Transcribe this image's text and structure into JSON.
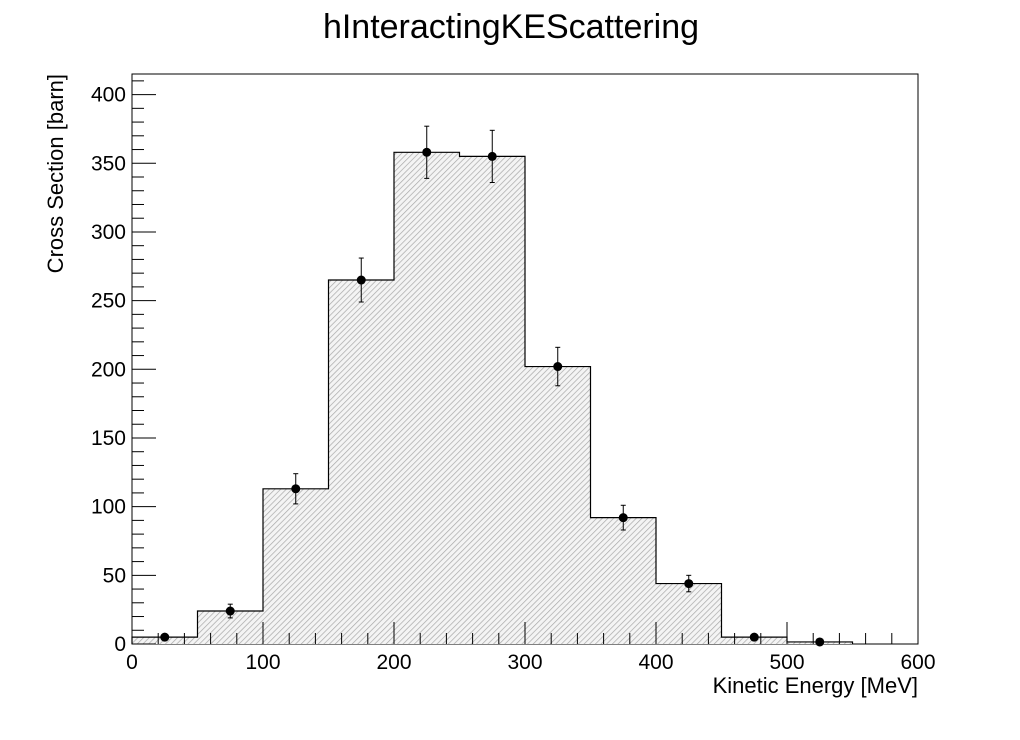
{
  "chart_data": {
    "type": "bar",
    "title": "hInteractingKEScattering",
    "xlabel": "Kinetic Energy [MeV]",
    "ylabel": "Cross Section [barn]",
    "xlim": [
      0,
      600
    ],
    "ylim": [
      0,
      415
    ],
    "x_ticks": [
      0,
      100,
      200,
      300,
      400,
      500,
      600
    ],
    "y_ticks": [
      0,
      50,
      100,
      150,
      200,
      250,
      300,
      350,
      400
    ],
    "bin_edges": [
      0,
      50,
      100,
      150,
      200,
      250,
      300,
      350,
      400,
      450,
      500,
      550
    ],
    "bin_centers": [
      25,
      75,
      125,
      175,
      225,
      275,
      325,
      375,
      425,
      475,
      525
    ],
    "values": [
      5,
      24,
      113,
      265,
      358,
      355,
      202,
      92,
      44,
      5,
      1.5
    ],
    "errors": [
      1.5,
      5,
      11,
      16,
      19,
      19,
      14,
      9,
      6,
      1.5,
      0.8
    ],
    "fill": "hatched light gray",
    "grid": false,
    "legend": "none",
    "colors": {
      "fill": "#c8c8c8",
      "line": "#000000",
      "marker": "#000000"
    }
  }
}
